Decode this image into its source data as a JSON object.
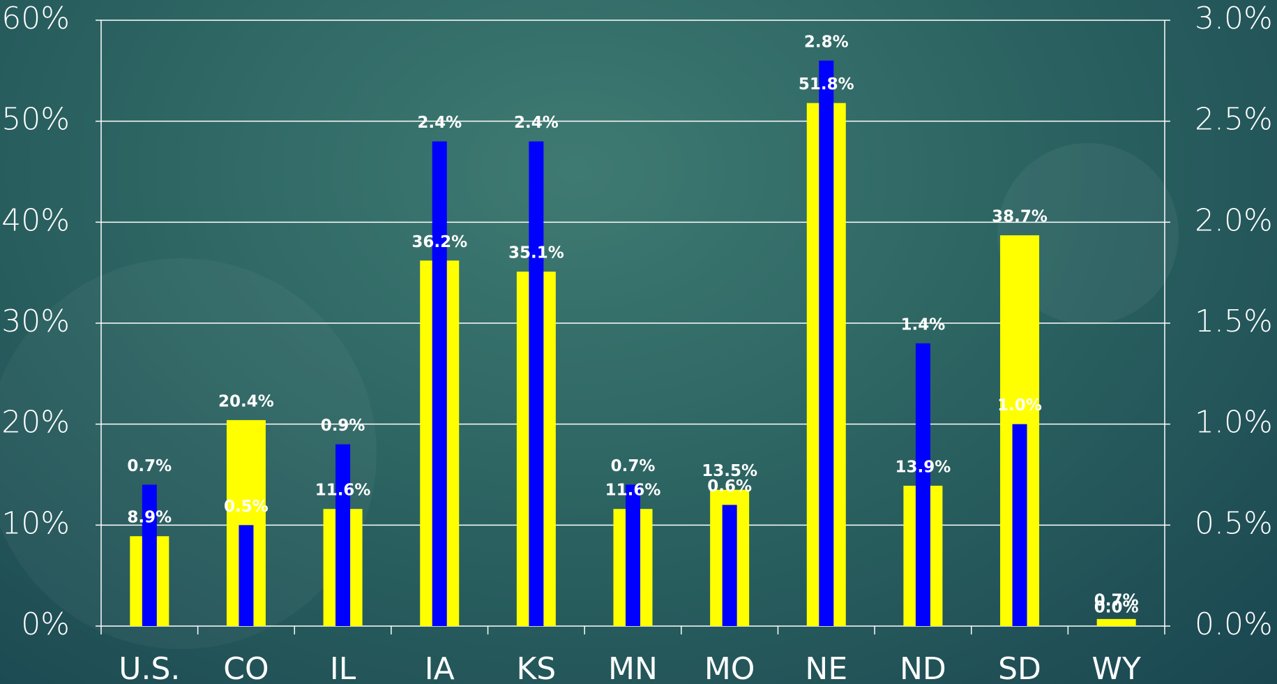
{
  "chart_data": {
    "type": "bar",
    "categories": [
      "U.S.",
      "CO",
      "IL",
      "IA",
      "KS",
      "MN",
      "MO",
      "NE",
      "ND",
      "SD",
      "WY"
    ],
    "series": [
      {
        "color": "#ffff00",
        "values": [
          8.9,
          20.4,
          11.6,
          36.2,
          35.1,
          11.6,
          13.5,
          51.8,
          13.9,
          38.7,
          0.7
        ],
        "value_labels": [
          "8.9%",
          "20.4%",
          "11.6%",
          "36.2%",
          "35.1%",
          "11.6%",
          "13.5%",
          "51.8%",
          "13.9%",
          "38.7%",
          "0.7%"
        ]
      },
      {
        "color": "#0000ff",
        "axis": "y2",
        "values": [
          0.7,
          0.5,
          0.9,
          2.4,
          2.4,
          0.7,
          0.6,
          2.8,
          1.4,
          1.0,
          0.0
        ],
        "value_labels": [
          "0.7%",
          "0.5%",
          "0.9%",
          "2.4%",
          "2.4%",
          "0.7%",
          "0.6%",
          "2.8%",
          "1.4%",
          "1.0%",
          "0.0%"
        ]
      }
    ],
    "ylim": [
      0,
      60
    ],
    "yticks": [
      {
        "value": 0,
        "label": "0%"
      },
      {
        "value": 10,
        "label": "10%"
      },
      {
        "value": 20,
        "label": "20%"
      },
      {
        "value": 30,
        "label": "30%"
      },
      {
        "value": 40,
        "label": "40%"
      },
      {
        "value": 50,
        "label": "50%"
      },
      {
        "value": 60,
        "label": "60%"
      }
    ],
    "y2lim": [
      0,
      3
    ],
    "y2ticks": [
      {
        "value": 0,
        "label": "0.0%"
      },
      {
        "value": 0.5,
        "label": "0.5%"
      },
      {
        "value": 1,
        "label": "1.0%"
      },
      {
        "value": 1.5,
        "label": "1.5%"
      },
      {
        "value": 2,
        "label": "2.0%"
      },
      {
        "value": 2.5,
        "label": "2.5%"
      },
      {
        "value": 3,
        "label": "3.0%"
      }
    ],
    "grid": true
  }
}
